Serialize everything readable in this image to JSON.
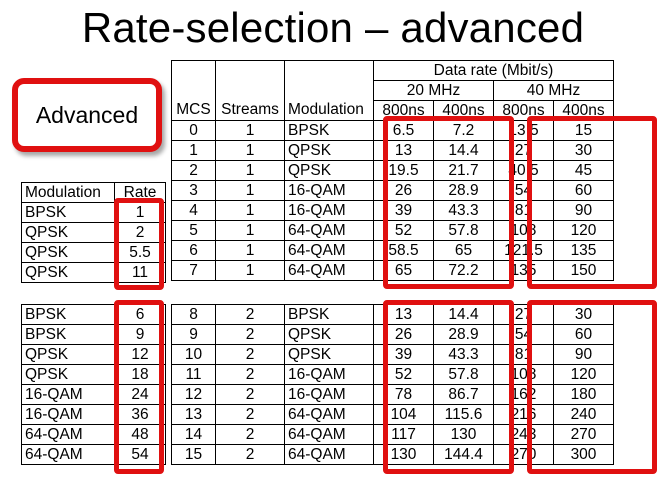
{
  "title": "Rate-selection – advanced",
  "badge": "Advanced",
  "left_header": {
    "modulation": "Modulation",
    "rate": "Rate"
  },
  "left_top": [
    {
      "mod": "BPSK",
      "rate": "1"
    },
    {
      "mod": "QPSK",
      "rate": "2"
    },
    {
      "mod": "QPSK",
      "rate": "5.5"
    },
    {
      "mod": "QPSK",
      "rate": "11"
    }
  ],
  "left_bottom": [
    {
      "mod": "BPSK",
      "rate": "6"
    },
    {
      "mod": "BPSK",
      "rate": "9"
    },
    {
      "mod": "QPSK",
      "rate": "12"
    },
    {
      "mod": "QPSK",
      "rate": "18"
    },
    {
      "mod": "16-QAM",
      "rate": "24"
    },
    {
      "mod": "16-QAM",
      "rate": "36"
    },
    {
      "mod": "64-QAM",
      "rate": "48"
    },
    {
      "mod": "64-QAM",
      "rate": "54"
    }
  ],
  "main_header": {
    "mcs": "MCS",
    "streams": "Streams",
    "modulation": "Modulation",
    "data_rate": "Data rate (Mbit/s)",
    "bw20": "20 MHz",
    "bw40": "40 MHz",
    "gi800": "800ns",
    "gi400": "400ns"
  },
  "main_top": [
    {
      "mcs": "0",
      "streams": "1",
      "mod": "BPSK",
      "r20l": "6.5",
      "r20s": "7.2",
      "r40l": "13.5",
      "r40s": "15"
    },
    {
      "mcs": "1",
      "streams": "1",
      "mod": "QPSK",
      "r20l": "13",
      "r20s": "14.4",
      "r40l": "27",
      "r40s": "30"
    },
    {
      "mcs": "2",
      "streams": "1",
      "mod": "QPSK",
      "r20l": "19.5",
      "r20s": "21.7",
      "r40l": "40.5",
      "r40s": "45"
    },
    {
      "mcs": "3",
      "streams": "1",
      "mod": "16-QAM",
      "r20l": "26",
      "r20s": "28.9",
      "r40l": "54",
      "r40s": "60"
    },
    {
      "mcs": "4",
      "streams": "1",
      "mod": "16-QAM",
      "r20l": "39",
      "r20s": "43.3",
      "r40l": "81",
      "r40s": "90"
    },
    {
      "mcs": "5",
      "streams": "1",
      "mod": "64-QAM",
      "r20l": "52",
      "r20s": "57.8",
      "r40l": "108",
      "r40s": "120"
    },
    {
      "mcs": "6",
      "streams": "1",
      "mod": "64-QAM",
      "r20l": "58.5",
      "r20s": "65",
      "r40l": "121.5",
      "r40s": "135"
    },
    {
      "mcs": "7",
      "streams": "1",
      "mod": "64-QAM",
      "r20l": "65",
      "r20s": "72.2",
      "r40l": "135",
      "r40s": "150"
    }
  ],
  "main_bottom": [
    {
      "mcs": "8",
      "streams": "2",
      "mod": "BPSK",
      "r20l": "13",
      "r20s": "14.4",
      "r40l": "27",
      "r40s": "30"
    },
    {
      "mcs": "9",
      "streams": "2",
      "mod": "QPSK",
      "r20l": "26",
      "r20s": "28.9",
      "r40l": "54",
      "r40s": "60"
    },
    {
      "mcs": "10",
      "streams": "2",
      "mod": "QPSK",
      "r20l": "39",
      "r20s": "43.3",
      "r40l": "81",
      "r40s": "90"
    },
    {
      "mcs": "11",
      "streams": "2",
      "mod": "16-QAM",
      "r20l": "52",
      "r20s": "57.8",
      "r40l": "108",
      "r40s": "120"
    },
    {
      "mcs": "12",
      "streams": "2",
      "mod": "16-QAM",
      "r20l": "78",
      "r20s": "86.7",
      "r40l": "162",
      "r40s": "180"
    },
    {
      "mcs": "13",
      "streams": "2",
      "mod": "64-QAM",
      "r20l": "104",
      "r20s": "115.6",
      "r40l": "216",
      "r40s": "240"
    },
    {
      "mcs": "14",
      "streams": "2",
      "mod": "64-QAM",
      "r20l": "117",
      "r20s": "130",
      "r40l": "243",
      "r40s": "270"
    },
    {
      "mcs": "15",
      "streams": "2",
      "mod": "64-QAM",
      "r20l": "130",
      "r20s": "144.4",
      "r40l": "270",
      "r40s": "300"
    }
  ],
  "highlight_color": "#e01010"
}
